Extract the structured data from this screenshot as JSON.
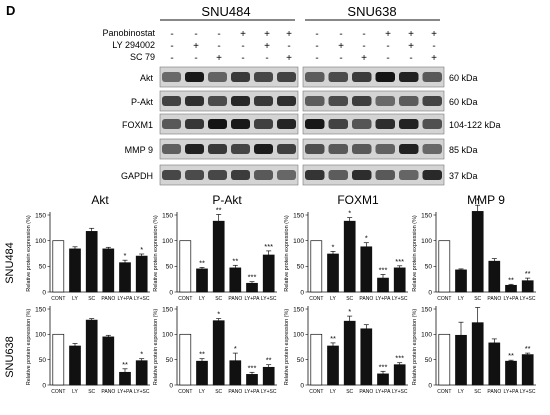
{
  "figure": {
    "panel_label": "D",
    "cell_lines": [
      "SNU484",
      "SNU638"
    ],
    "treatment_rows": [
      {
        "label": "Panobinostat",
        "marks": [
          "-",
          "-",
          "-",
          "+",
          "+",
          "+",
          "-",
          "-",
          "-",
          "+",
          "+",
          "+"
        ]
      },
      {
        "label": "LY 294002",
        "marks": [
          "-",
          "+",
          "-",
          "-",
          "+",
          "-",
          "-",
          "+",
          "-",
          "-",
          "+",
          "-"
        ]
      },
      {
        "label": "SC 79",
        "marks": [
          "-",
          "-",
          "+",
          "-",
          "-",
          "+",
          "-",
          "-",
          "+",
          "-",
          "-",
          "+"
        ]
      }
    ],
    "blots": [
      {
        "protein": "Akt",
        "size": "60 kDa"
      },
      {
        "protein": "P-Akt",
        "size": "60 kDa"
      },
      {
        "protein": "FOXM1",
        "size": "104-122 kDa"
      },
      {
        "protein": "MMP 9",
        "size": "85 kDa"
      },
      {
        "protein": "GAPDH",
        "size": "37 kDa"
      }
    ],
    "row_labels": [
      "SNU484",
      "SNU638"
    ],
    "column_titles": [
      "Akt",
      "P-Akt",
      "FOXM1",
      "MMP 9"
    ],
    "ylabel": "Relative protein expression (%)",
    "yticks": [
      0,
      50,
      100,
      150
    ],
    "colors": {
      "control_bar": "#ffffff",
      "treated_bar": "#111111",
      "axis": "#111111"
    }
  },
  "chart_data": [
    {
      "type": "bar",
      "row": "SNU484",
      "title": "Akt",
      "categories": [
        "CONT",
        "LY",
        "SC",
        "PANO",
        "LY+PA",
        "LY+SC"
      ],
      "values": [
        100,
        84,
        118,
        84,
        57,
        70
      ],
      "errors": [
        0,
        4,
        6,
        3,
        5,
        4
      ],
      "annotations": [
        "",
        "",
        "",
        "",
        "*",
        "*"
      ],
      "ylim": [
        0,
        150
      ]
    },
    {
      "type": "bar",
      "row": "SNU484",
      "title": "P-Akt",
      "categories": [
        "CONT",
        "LY",
        "SC",
        "PANO",
        "LY+PA",
        "LY+SC"
      ],
      "values": [
        100,
        45,
        138,
        47,
        17,
        72
      ],
      "errors": [
        0,
        3,
        13,
        5,
        3,
        8
      ],
      "annotations": [
        "",
        "**",
        "**",
        "**",
        "***",
        "***"
      ],
      "ylim": [
        0,
        150
      ]
    },
    {
      "type": "bar",
      "row": "SNU484",
      "title": "FOXM1",
      "categories": [
        "CONT",
        "LY",
        "SC",
        "PANO",
        "LY+PA",
        "LY+SC"
      ],
      "values": [
        100,
        74,
        138,
        88,
        27,
        47
      ],
      "errors": [
        0,
        5,
        7,
        8,
        7,
        4
      ],
      "annotations": [
        "",
        "*",
        "*",
        "*",
        "***",
        "***"
      ],
      "ylim": [
        0,
        150
      ]
    },
    {
      "type": "bar",
      "row": "SNU484",
      "title": "MMP 9",
      "categories": [
        "CONT",
        "LY",
        "SC",
        "PANO",
        "LY+PA",
        "LY+SC"
      ],
      "values": [
        100,
        43,
        157,
        60,
        13,
        22
      ],
      "errors": [
        0,
        2,
        12,
        5,
        2,
        5
      ],
      "annotations": [
        "",
        "",
        "*",
        "",
        "**",
        "**"
      ],
      "ylim": [
        0,
        150
      ]
    },
    {
      "type": "bar",
      "row": "SNU638",
      "title": "Akt",
      "categories": [
        "CONT",
        "LY",
        "SC",
        "PANO",
        "LY+PA",
        "LY+SC"
      ],
      "values": [
        100,
        77,
        128,
        95,
        25,
        48
      ],
      "errors": [
        0,
        5,
        3,
        3,
        7,
        4
      ],
      "annotations": [
        "",
        "",
        "",
        "",
        "**",
        "*"
      ],
      "ylim": [
        0,
        150
      ]
    },
    {
      "type": "bar",
      "row": "SNU638",
      "title": "P-Akt",
      "categories": [
        "CONT",
        "LY",
        "SC",
        "PANO",
        "LY+PA",
        "LY+SC"
      ],
      "values": [
        100,
        47,
        127,
        48,
        21,
        35
      ],
      "errors": [
        0,
        5,
        4,
        15,
        4,
        5
      ],
      "annotations": [
        "",
        "**",
        "*",
        "*",
        "***",
        "**"
      ],
      "ylim": [
        0,
        150
      ]
    },
    {
      "type": "bar",
      "row": "SNU638",
      "title": "FOXM1",
      "categories": [
        "CONT",
        "LY",
        "SC",
        "PANO",
        "LY+PA",
        "LY+SC"
      ],
      "values": [
        100,
        77,
        126,
        111,
        22,
        40
      ],
      "errors": [
        0,
        6,
        10,
        8,
        5,
        4
      ],
      "annotations": [
        "",
        "**",
        "*",
        "",
        "***",
        "***"
      ],
      "ylim": [
        0,
        150
      ]
    },
    {
      "type": "bar",
      "row": "SNU638",
      "title": "MMP 9",
      "categories": [
        "CONT",
        "LY",
        "SC",
        "PANO",
        "LY+PA",
        "LY+SC"
      ],
      "values": [
        100,
        98,
        123,
        83,
        47,
        60
      ],
      "errors": [
        0,
        26,
        30,
        8,
        2,
        3
      ],
      "annotations": [
        "",
        "",
        "",
        "",
        "**",
        "**"
      ],
      "ylim": [
        0,
        150
      ]
    }
  ]
}
